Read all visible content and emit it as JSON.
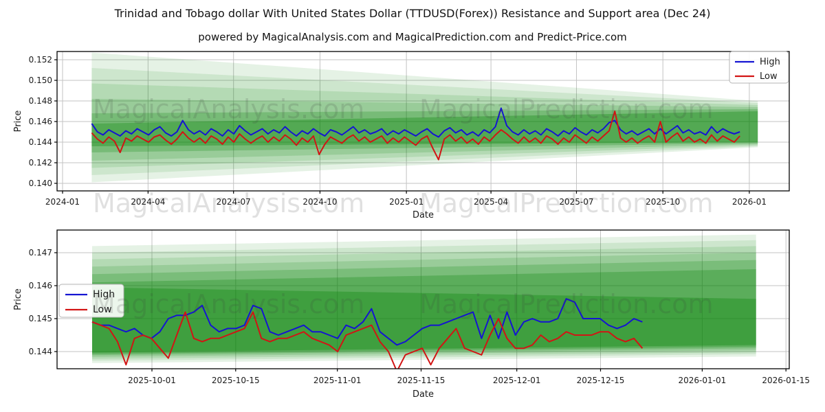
{
  "header": {
    "title": "Trinidad and Tobago dollar With United States Dollar (TTDUSD(Forex)) Resistance and Support area (Dec 24)",
    "subtitle": "powered by MagicalAnalysis.com and MagicalPrediction.com and Predict-Price.com"
  },
  "watermarks": {
    "left": "MagicalAnalysis.com",
    "right": "MagicalPrediction.com"
  },
  "colors": {
    "high": "#1414d2",
    "low": "#d21414",
    "band": "#008000",
    "grid": "#c3c3c3",
    "spine": "#000000",
    "text": "#1a1a1a"
  },
  "legend": {
    "high_label": "High",
    "low_label": "Low"
  },
  "chart_data": [
    {
      "type": "line",
      "name": "long-range-chart",
      "xlabel": "Date",
      "ylabel": "Price",
      "grid": true,
      "legend_position": "top-right",
      "ylim": [
        0.1396,
        0.1528
      ],
      "x_ticks": [
        {
          "label": "2024-01",
          "date": "2024-01-01"
        },
        {
          "label": "2024-04",
          "date": "2024-04-01"
        },
        {
          "label": "2024-07",
          "date": "2024-07-01"
        },
        {
          "label": "2024-10",
          "date": "2024-10-01"
        },
        {
          "label": "2025-01",
          "date": "2025-01-01"
        },
        {
          "label": "2025-04",
          "date": "2025-04-01"
        },
        {
          "label": "2025-07",
          "date": "2025-07-01"
        },
        {
          "label": "2025-10",
          "date": "2025-10-01"
        },
        {
          "label": "2026-01",
          "date": "2026-01-01"
        }
      ],
      "y_ticks": [
        {
          "label": "0.140",
          "value": 0.14
        },
        {
          "label": "0.142",
          "value": 0.142
        },
        {
          "label": "0.144",
          "value": 0.144
        },
        {
          "label": "0.146",
          "value": 0.146
        },
        {
          "label": "0.148",
          "value": 0.148
        },
        {
          "label": "0.150",
          "value": 0.15
        },
        {
          "label": "0.152",
          "value": 0.152
        }
      ],
      "bands": [
        {
          "start": "2024-02-01",
          "end": "2026-01-10",
          "top": [
            0.1527,
            0.148
          ],
          "bottom": [
            0.1401,
            0.1435
          ],
          "alpha": 0.1
        },
        {
          "start": "2024-02-01",
          "end": "2026-01-10",
          "top": [
            0.1512,
            0.1478
          ],
          "bottom": [
            0.1408,
            0.1436
          ],
          "alpha": 0.1
        },
        {
          "start": "2024-02-01",
          "end": "2026-01-10",
          "top": [
            0.1497,
            0.1476
          ],
          "bottom": [
            0.1415,
            0.1437
          ],
          "alpha": 0.12
        },
        {
          "start": "2024-02-01",
          "end": "2026-01-10",
          "top": [
            0.1482,
            0.1474
          ],
          "bottom": [
            0.1422,
            0.1438
          ],
          "alpha": 0.15
        },
        {
          "start": "2024-02-01",
          "end": "2026-01-10",
          "top": [
            0.1468,
            0.1472
          ],
          "bottom": [
            0.143,
            0.1439
          ],
          "alpha": 0.22
        },
        {
          "start": "2024-02-01",
          "end": "2026-01-10",
          "top": [
            0.1458,
            0.147
          ],
          "bottom": [
            0.1436,
            0.144
          ],
          "alpha": 0.3
        }
      ],
      "series": [
        {
          "name": "High",
          "color_key": "high",
          "start": "2024-02-01",
          "end": "2025-12-22",
          "evenly_spaced": true,
          "values": [
            0.1458,
            0.145,
            0.1447,
            0.1452,
            0.1449,
            0.1446,
            0.1451,
            0.1448,
            0.1453,
            0.145,
            0.1447,
            0.1452,
            0.1455,
            0.1449,
            0.1446,
            0.145,
            0.1461,
            0.1452,
            0.1448,
            0.1451,
            0.1447,
            0.1453,
            0.145,
            0.1446,
            0.1452,
            0.1448,
            0.1456,
            0.1451,
            0.1447,
            0.145,
            0.1453,
            0.1448,
            0.1452,
            0.1449,
            0.1455,
            0.145,
            0.1446,
            0.1451,
            0.1448,
            0.1453,
            0.1449,
            0.1446,
            0.1452,
            0.145,
            0.1447,
            0.1451,
            0.1455,
            0.1449,
            0.1452,
            0.1448,
            0.145,
            0.1453,
            0.1447,
            0.1451,
            0.1448,
            0.1452,
            0.1449,
            0.1446,
            0.145,
            0.1453,
            0.1448,
            0.1445,
            0.1451,
            0.1454,
            0.1449,
            0.1452,
            0.1447,
            0.145,
            0.1446,
            0.1452,
            0.1449,
            0.1455,
            0.1473,
            0.1456,
            0.145,
            0.1447,
            0.1452,
            0.1448,
            0.1451,
            0.1447,
            0.1453,
            0.145,
            0.1446,
            0.1451,
            0.1448,
            0.1454,
            0.145,
            0.1447,
            0.1452,
            0.1449,
            0.1453,
            0.1459,
            0.1461,
            0.1452,
            0.1448,
            0.1451,
            0.1447,
            0.145,
            0.1453,
            0.1448,
            0.1453,
            0.1448,
            0.1452,
            0.1456,
            0.1449,
            0.1452,
            0.1448,
            0.145,
            0.1447,
            0.1455,
            0.1449,
            0.1453,
            0.145,
            0.1448,
            0.145
          ]
        },
        {
          "name": "Low",
          "color_key": "low",
          "start": "2024-02-01",
          "end": "2025-12-22",
          "evenly_spaced": true,
          "values": [
            0.1449,
            0.1443,
            0.1439,
            0.1445,
            0.1441,
            0.143,
            0.1444,
            0.1441,
            0.1446,
            0.1443,
            0.144,
            0.1445,
            0.1447,
            0.1442,
            0.1438,
            0.1443,
            0.145,
            0.1444,
            0.144,
            0.1444,
            0.1439,
            0.1446,
            0.1443,
            0.1438,
            0.1445,
            0.144,
            0.1448,
            0.1443,
            0.1439,
            0.1443,
            0.1446,
            0.144,
            0.1445,
            0.1441,
            0.1447,
            0.1443,
            0.1437,
            0.1444,
            0.144,
            0.1446,
            0.1428,
            0.1438,
            0.1445,
            0.1442,
            0.1439,
            0.1444,
            0.1447,
            0.1441,
            0.1445,
            0.144,
            0.1443,
            0.1446,
            0.1439,
            0.1444,
            0.144,
            0.1445,
            0.1441,
            0.1437,
            0.1443,
            0.1446,
            0.1434,
            0.1423,
            0.1443,
            0.1447,
            0.1441,
            0.1445,
            0.1439,
            0.1443,
            0.1438,
            0.1445,
            0.1441,
            0.1447,
            0.1452,
            0.1448,
            0.1443,
            0.1439,
            0.1445,
            0.144,
            0.1444,
            0.1439,
            0.1446,
            0.1443,
            0.1438,
            0.1444,
            0.144,
            0.1447,
            0.1443,
            0.1439,
            0.1445,
            0.1441,
            0.1446,
            0.1451,
            0.147,
            0.1444,
            0.144,
            0.1444,
            0.1439,
            0.1443,
            0.1446,
            0.144,
            0.146,
            0.144,
            0.1445,
            0.1449,
            0.1441,
            0.1445,
            0.144,
            0.1443,
            0.1439,
            0.1447,
            0.1441,
            0.1446,
            0.1443,
            0.144,
            0.1446
          ]
        }
      ]
    },
    {
      "type": "line",
      "name": "recent-detail-chart",
      "xlabel": "Date",
      "ylabel": "Price",
      "grid": true,
      "legend_position": "middle-left",
      "ylim": [
        0.14348,
        0.14765
      ],
      "x_ticks": [
        {
          "label": "2025-10-01",
          "date": "2025-10-01"
        },
        {
          "label": "2025-10-15",
          "date": "2025-10-15"
        },
        {
          "label": "2025-11-01",
          "date": "2025-11-01"
        },
        {
          "label": "2025-11-15",
          "date": "2025-11-15"
        },
        {
          "label": "2025-12-01",
          "date": "2025-12-01"
        },
        {
          "label": "2025-12-15",
          "date": "2025-12-15"
        },
        {
          "label": "2026-01-01",
          "date": "2026-01-01"
        },
        {
          "label": "2026-01-15",
          "date": "2026-01-15"
        }
      ],
      "y_ticks": [
        {
          "label": "0.144",
          "value": 0.144
        },
        {
          "label": "0.145",
          "value": 0.145
        },
        {
          "label": "0.146",
          "value": 0.146
        },
        {
          "label": "0.147",
          "value": 0.147
        }
      ],
      "bands": [
        {
          "start": "2025-09-21",
          "end": "2026-01-10",
          "top": [
            0.1472,
            0.14755
          ],
          "bottom": [
            0.14365,
            0.14385
          ],
          "alpha": 0.1
        },
        {
          "start": "2025-09-21",
          "end": "2026-01-10",
          "top": [
            0.147,
            0.14738
          ],
          "bottom": [
            0.14372,
            0.14392
          ],
          "alpha": 0.1
        },
        {
          "start": "2025-09-21",
          "end": "2026-01-10",
          "top": [
            0.1468,
            0.1472
          ],
          "bottom": [
            0.14378,
            0.14398
          ],
          "alpha": 0.12
        },
        {
          "start": "2025-09-21",
          "end": "2026-01-10",
          "top": [
            0.14658,
            0.147
          ],
          "bottom": [
            0.14384,
            0.14404
          ],
          "alpha": 0.15
        },
        {
          "start": "2025-09-21",
          "end": "2026-01-10",
          "top": [
            0.14635,
            0.14678
          ],
          "bottom": [
            0.14389,
            0.1441
          ],
          "alpha": 0.2
        },
        {
          "start": "2025-09-21",
          "end": "2026-01-10",
          "top": [
            0.1461,
            0.1465
          ],
          "bottom": [
            0.14393,
            0.14415
          ],
          "alpha": 0.25
        },
        {
          "start": "2025-09-21",
          "end": "2026-01-10",
          "top": [
            0.14595,
            0.1456
          ],
          "bottom": [
            0.14397,
            0.1442
          ],
          "alpha": 0.3
        }
      ],
      "series": [
        {
          "name": "High",
          "color_key": "high",
          "start": "2025-09-21",
          "end": "2025-12-22",
          "evenly_spaced": true,
          "values": [
            0.1449,
            0.1448,
            0.1448,
            0.1447,
            0.1446,
            0.1447,
            0.1445,
            0.1444,
            0.1446,
            0.145,
            0.1451,
            0.1451,
            0.1452,
            0.1454,
            0.1448,
            0.1446,
            0.1447,
            0.1447,
            0.1448,
            0.1454,
            0.1453,
            0.1446,
            0.1445,
            0.1446,
            0.1447,
            0.1448,
            0.1446,
            0.1446,
            0.1445,
            0.1444,
            0.1448,
            0.1447,
            0.1449,
            0.1453,
            0.1446,
            0.1444,
            0.1442,
            0.1443,
            0.1445,
            0.1447,
            0.1448,
            0.1448,
            0.1449,
            0.145,
            0.1451,
            0.1452,
            0.1444,
            0.1451,
            0.1444,
            0.1452,
            0.1445,
            0.1449,
            0.145,
            0.1449,
            0.1449,
            0.145,
            0.1456,
            0.1455,
            0.145,
            0.145,
            0.145,
            0.1448,
            0.1447,
            0.1448,
            0.145,
            0.1449
          ]
        },
        {
          "name": "Low",
          "color_key": "low",
          "start": "2025-09-21",
          "end": "2025-12-22",
          "evenly_spaced": true,
          "values": [
            0.1449,
            0.1448,
            0.1447,
            0.1443,
            0.1436,
            0.1444,
            0.1445,
            0.1444,
            0.1441,
            0.1438,
            0.1445,
            0.1452,
            0.1444,
            0.1443,
            0.1444,
            0.1444,
            0.1445,
            0.1446,
            0.1447,
            0.1452,
            0.1444,
            0.1443,
            0.1444,
            0.1444,
            0.1445,
            0.1446,
            0.1444,
            0.1443,
            0.1442,
            0.144,
            0.1445,
            0.1446,
            0.1447,
            0.1448,
            0.1443,
            0.144,
            0.1434,
            0.1439,
            0.144,
            0.1441,
            0.1436,
            0.1441,
            0.1444,
            0.1447,
            0.1441,
            0.144,
            0.1439,
            0.1445,
            0.145,
            0.1444,
            0.1441,
            0.1441,
            0.1442,
            0.1445,
            0.1443,
            0.1444,
            0.1446,
            0.1445,
            0.1445,
            0.1445,
            0.1446,
            0.1446,
            0.1444,
            0.1443,
            0.1444,
            0.1441
          ]
        }
      ]
    }
  ]
}
